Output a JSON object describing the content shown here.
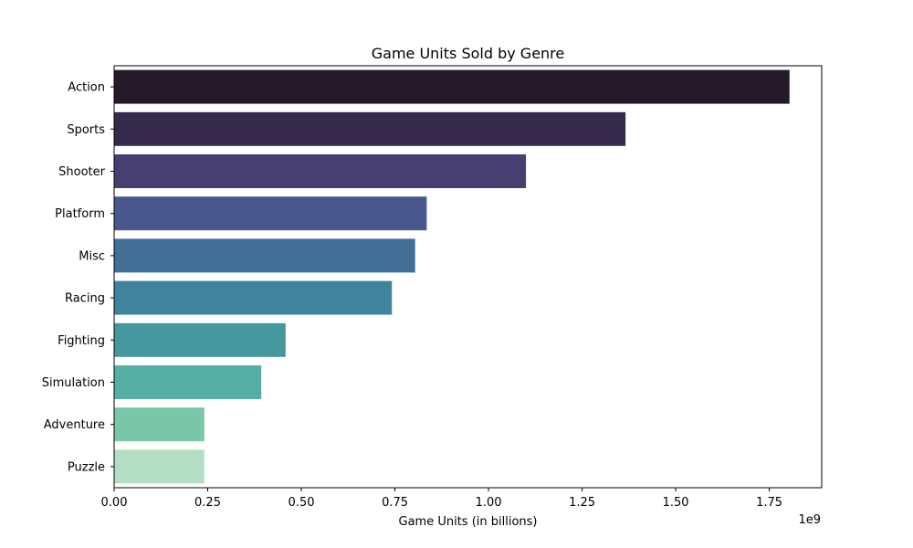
{
  "chart_data": {
    "type": "bar",
    "orientation": "horizontal",
    "title": "Game Units Sold by Genre",
    "xlabel": "Game Units (in billions)",
    "ylabel": "",
    "offset_text": "1e9",
    "xlim": [
      0,
      1890000000.0
    ],
    "x_ticks": [
      0,
      250000000.0,
      500000000.0,
      750000000.0,
      1000000000.0,
      1250000000.0,
      1500000000.0,
      1750000000.0
    ],
    "x_tick_labels": [
      "0.00",
      "0.25",
      "0.50",
      "0.75",
      "1.00",
      "1.25",
      "1.50",
      "1.75"
    ],
    "grid": false,
    "categories": [
      "Action",
      "Sports",
      "Shooter",
      "Platform",
      "Misc",
      "Racing",
      "Fighting",
      "Simulation",
      "Adventure",
      "Puzzle"
    ],
    "values": [
      1804000000,
      1366000000,
      1100000000,
      835000000,
      804000000,
      742000000,
      458000000,
      393000000,
      241000000,
      241000000
    ],
    "colors": [
      "#241a2a",
      "#352a4b",
      "#473f71",
      "#48578d",
      "#436f96",
      "#40839d",
      "#45989e",
      "#55b0a3",
      "#7ac6a8",
      "#b4dec4"
    ]
  }
}
